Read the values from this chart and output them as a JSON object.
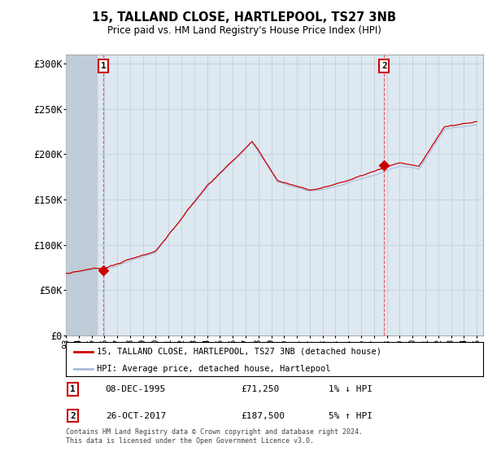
{
  "title1": "15, TALLAND CLOSE, HARTLEPOOL, TS27 3NB",
  "title2": "Price paid vs. HM Land Registry's House Price Index (HPI)",
  "ylim": [
    0,
    310000
  ],
  "yticks": [
    0,
    50000,
    100000,
    150000,
    200000,
    250000,
    300000
  ],
  "ytick_labels": [
    "£0",
    "£50K",
    "£100K",
    "£150K",
    "£200K",
    "£250K",
    "£300K"
  ],
  "sale1_year": 1995.917,
  "sale1_price": 71250,
  "sale2_year": 2017.792,
  "sale2_price": 187500,
  "line_color_price": "#cc0000",
  "line_color_hpi": "#aabbdd",
  "bg_color": "#dde8f0",
  "hatch_color": "#c0ccd8",
  "legend_price_label": "15, TALLAND CLOSE, HARTLEPOOL, TS27 3NB (detached house)",
  "legend_hpi_label": "HPI: Average price, detached house, Hartlepool",
  "annotation1_text": "08-DEC-1995",
  "annotation1_price": "£71,250",
  "annotation1_hpi": "1% ↓ HPI",
  "annotation2_text": "26-OCT-2017",
  "annotation2_price": "£187,500",
  "annotation2_hpi": "5% ↑ HPI",
  "footer": "Contains HM Land Registry data © Crown copyright and database right 2024.\nThis data is licensed under the Open Government Licence v3.0.",
  "grid_color": "#bbccdd",
  "sale_marker_color": "#cc0000"
}
